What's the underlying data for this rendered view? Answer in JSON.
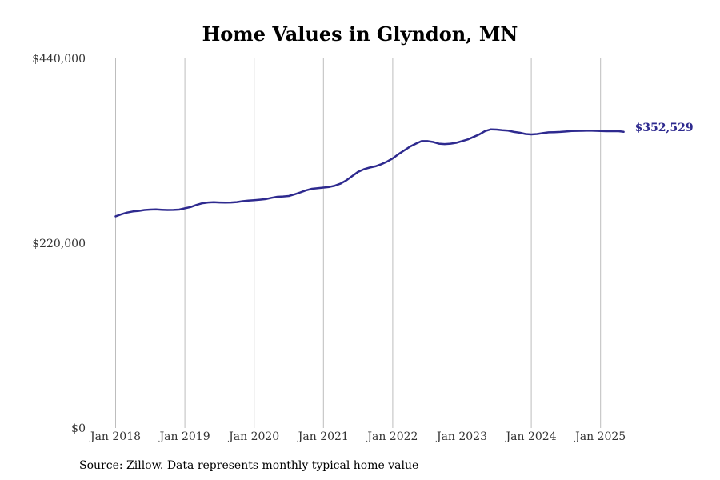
{
  "chart_data": {
    "type": "line",
    "title": "Home Values in Glyndon, MN",
    "source_note": "Source: Zillow. Data represents monthly typical home value",
    "ylim": [
      0,
      440000
    ],
    "y_tick_labels": [
      "$440,000",
      "$220,000",
      "$0"
    ],
    "y_tick_values": [
      440000,
      220000,
      0
    ],
    "x_tick_labels": [
      "Jan 2018",
      "Jan 2019",
      "Jan 2020",
      "Jan 2021",
      "Jan 2022",
      "Jan 2023",
      "Jan 2024",
      "Jan 2025"
    ],
    "x_tick_dates": [
      "2018-01",
      "2019-01",
      "2020-01",
      "2021-01",
      "2022-01",
      "2023-01",
      "2024-01",
      "2025-01"
    ],
    "grid": "vertical",
    "line_color": "#2e2a8f",
    "end_label": "$352,529",
    "series": [
      {
        "x": [
          "2018-01",
          "2018-02",
          "2018-03",
          "2018-04",
          "2018-05",
          "2018-06",
          "2018-07",
          "2018-08",
          "2018-09",
          "2018-10",
          "2018-11",
          "2018-12",
          "2019-01",
          "2019-02",
          "2019-03",
          "2019-04",
          "2019-05",
          "2019-06",
          "2019-07",
          "2019-08",
          "2019-09",
          "2019-10",
          "2019-11",
          "2019-12",
          "2020-01",
          "2020-02",
          "2020-03",
          "2020-04",
          "2020-05",
          "2020-06",
          "2020-07",
          "2020-08",
          "2020-09",
          "2020-10",
          "2020-11",
          "2020-12",
          "2021-01",
          "2021-02",
          "2021-03",
          "2021-04",
          "2021-05",
          "2021-06",
          "2021-07",
          "2021-08",
          "2021-09",
          "2021-10",
          "2021-11",
          "2021-12",
          "2022-01",
          "2022-02",
          "2022-03",
          "2022-04",
          "2022-05",
          "2022-06",
          "2022-07",
          "2022-08",
          "2022-09",
          "2022-10",
          "2022-11",
          "2022-12",
          "2023-01",
          "2023-02",
          "2023-03",
          "2023-04",
          "2023-05",
          "2023-06",
          "2023-07",
          "2023-08",
          "2023-09",
          "2023-10",
          "2023-11",
          "2023-12",
          "2024-01",
          "2024-02",
          "2024-03",
          "2024-04",
          "2024-05",
          "2024-06",
          "2024-07",
          "2024-08",
          "2024-09",
          "2024-10",
          "2024-11",
          "2024-12",
          "2025-01",
          "2025-02",
          "2025-03",
          "2025-04",
          "2025-05"
        ],
        "values": [
          252000,
          254500,
          256500,
          257800,
          258500,
          259500,
          260000,
          260200,
          259800,
          259500,
          259600,
          260000,
          261500,
          263000,
          265500,
          267500,
          268500,
          268800,
          268500,
          268300,
          268500,
          269000,
          270000,
          270800,
          271200,
          271800,
          272500,
          274000,
          275200,
          275600,
          276200,
          278200,
          280500,
          283000,
          284800,
          285500,
          286200,
          287000,
          288500,
          291000,
          295000,
          300000,
          305000,
          308000,
          310000,
          311500,
          314000,
          317000,
          321000,
          326000,
          330500,
          335000,
          338500,
          341500,
          341500,
          340500,
          338500,
          338000,
          338500,
          339500,
          341500,
          343500,
          346500,
          349500,
          353500,
          355500,
          355200,
          354500,
          354000,
          352500,
          351500,
          350000,
          349500,
          350000,
          351000,
          352000,
          352200,
          352500,
          353000,
          353500,
          353700,
          353800,
          354000,
          353800,
          353500,
          353300,
          353300,
          353400,
          352529
        ]
      }
    ]
  }
}
